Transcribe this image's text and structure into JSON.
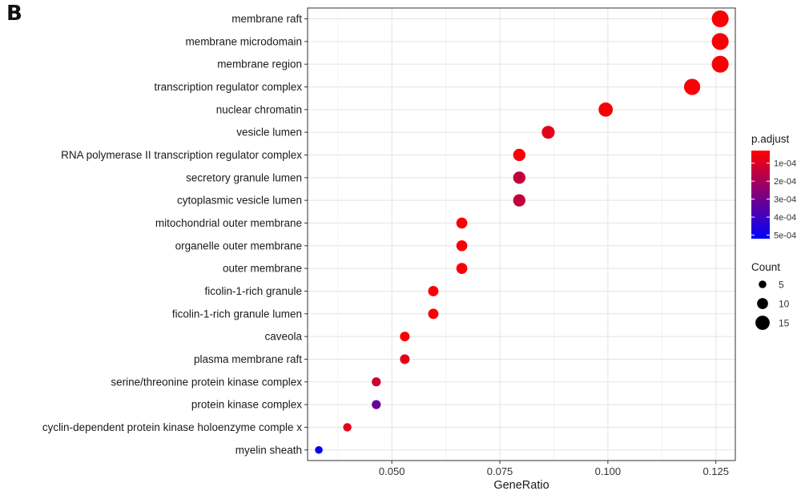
{
  "panel_label": "B",
  "chart_data": {
    "type": "scatter",
    "title": "",
    "xlabel": "GeneRatio",
    "ylabel": "",
    "xlim": [
      0.0305,
      0.1295
    ],
    "xticks": [
      0.05,
      0.075,
      0.1,
      0.125
    ],
    "xtick_labels": [
      "0.050",
      "0.075",
      "0.100",
      "0.125"
    ],
    "grid": true,
    "legend_position": "right",
    "points": [
      {
        "term": "membrane raft",
        "gene_ratio": 0.126,
        "count": 19,
        "p_adjust": 4e-05
      },
      {
        "term": "membrane microdomain",
        "gene_ratio": 0.126,
        "count": 19,
        "p_adjust": 4e-05
      },
      {
        "term": "membrane region",
        "gene_ratio": 0.126,
        "count": 19,
        "p_adjust": 4e-05
      },
      {
        "term": "transcription regulator complex",
        "gene_ratio": 0.1195,
        "count": 18,
        "p_adjust": 4e-05
      },
      {
        "term": "nuclear chromatin",
        "gene_ratio": 0.0995,
        "count": 15,
        "p_adjust": 4e-05
      },
      {
        "term": "vesicle lumen",
        "gene_ratio": 0.0862,
        "count": 13,
        "p_adjust": 8e-05
      },
      {
        "term": "RNA polymerase II transcription regulator complex",
        "gene_ratio": 0.0795,
        "count": 12,
        "p_adjust": 4e-05
      },
      {
        "term": "secretory granule lumen",
        "gene_ratio": 0.0795,
        "count": 12,
        "p_adjust": 0.00015
      },
      {
        "term": "cytoplasmic vesicle lumen",
        "gene_ratio": 0.0795,
        "count": 12,
        "p_adjust": 0.00015
      },
      {
        "term": "mitochondrial outer membrane",
        "gene_ratio": 0.0662,
        "count": 10,
        "p_adjust": 4e-05
      },
      {
        "term": "organelle outer membrane",
        "gene_ratio": 0.0662,
        "count": 10,
        "p_adjust": 4e-05
      },
      {
        "term": "outer membrane",
        "gene_ratio": 0.0662,
        "count": 10,
        "p_adjust": 4e-05
      },
      {
        "term": "ficolin-1-rich granule",
        "gene_ratio": 0.0596,
        "count": 9,
        "p_adjust": 4e-05
      },
      {
        "term": "ficolin-1-rich granule lumen",
        "gene_ratio": 0.0596,
        "count": 9,
        "p_adjust": 4e-05
      },
      {
        "term": "caveola",
        "gene_ratio": 0.053,
        "count": 8,
        "p_adjust": 4e-05
      },
      {
        "term": "plasma membrane raft",
        "gene_ratio": 0.053,
        "count": 8,
        "p_adjust": 8e-05
      },
      {
        "term": "serine/threonine protein kinase complex",
        "gene_ratio": 0.0464,
        "count": 7,
        "p_adjust": 0.00012
      },
      {
        "term": "protein kinase complex",
        "gene_ratio": 0.0464,
        "count": 7,
        "p_adjust": 0.00032
      },
      {
        "term": "cyclin-dependent protein kinase holoenzyme comple x",
        "gene_ratio": 0.0397,
        "count": 6,
        "p_adjust": 8e-05
      },
      {
        "term": "myelin sheath",
        "gene_ratio": 0.0331,
        "count": 5,
        "p_adjust": 0.0005
      }
    ],
    "color_legend": {
      "title": "p.adjust",
      "ticks": [
        0.0001,
        0.0002,
        0.0003,
        0.0004,
        0.0005
      ],
      "tick_labels": [
        "1e-04",
        "2e-04",
        "3e-04",
        "4e-04",
        "5e-04"
      ],
      "range": [
        3e-05,
        0.00052
      ],
      "low_color": "#ff0000",
      "high_color": "#0000ff"
    },
    "size_legend": {
      "title": "Count",
      "values": [
        5,
        10,
        15
      ],
      "labels": [
        "5",
        "10",
        "15"
      ]
    }
  }
}
